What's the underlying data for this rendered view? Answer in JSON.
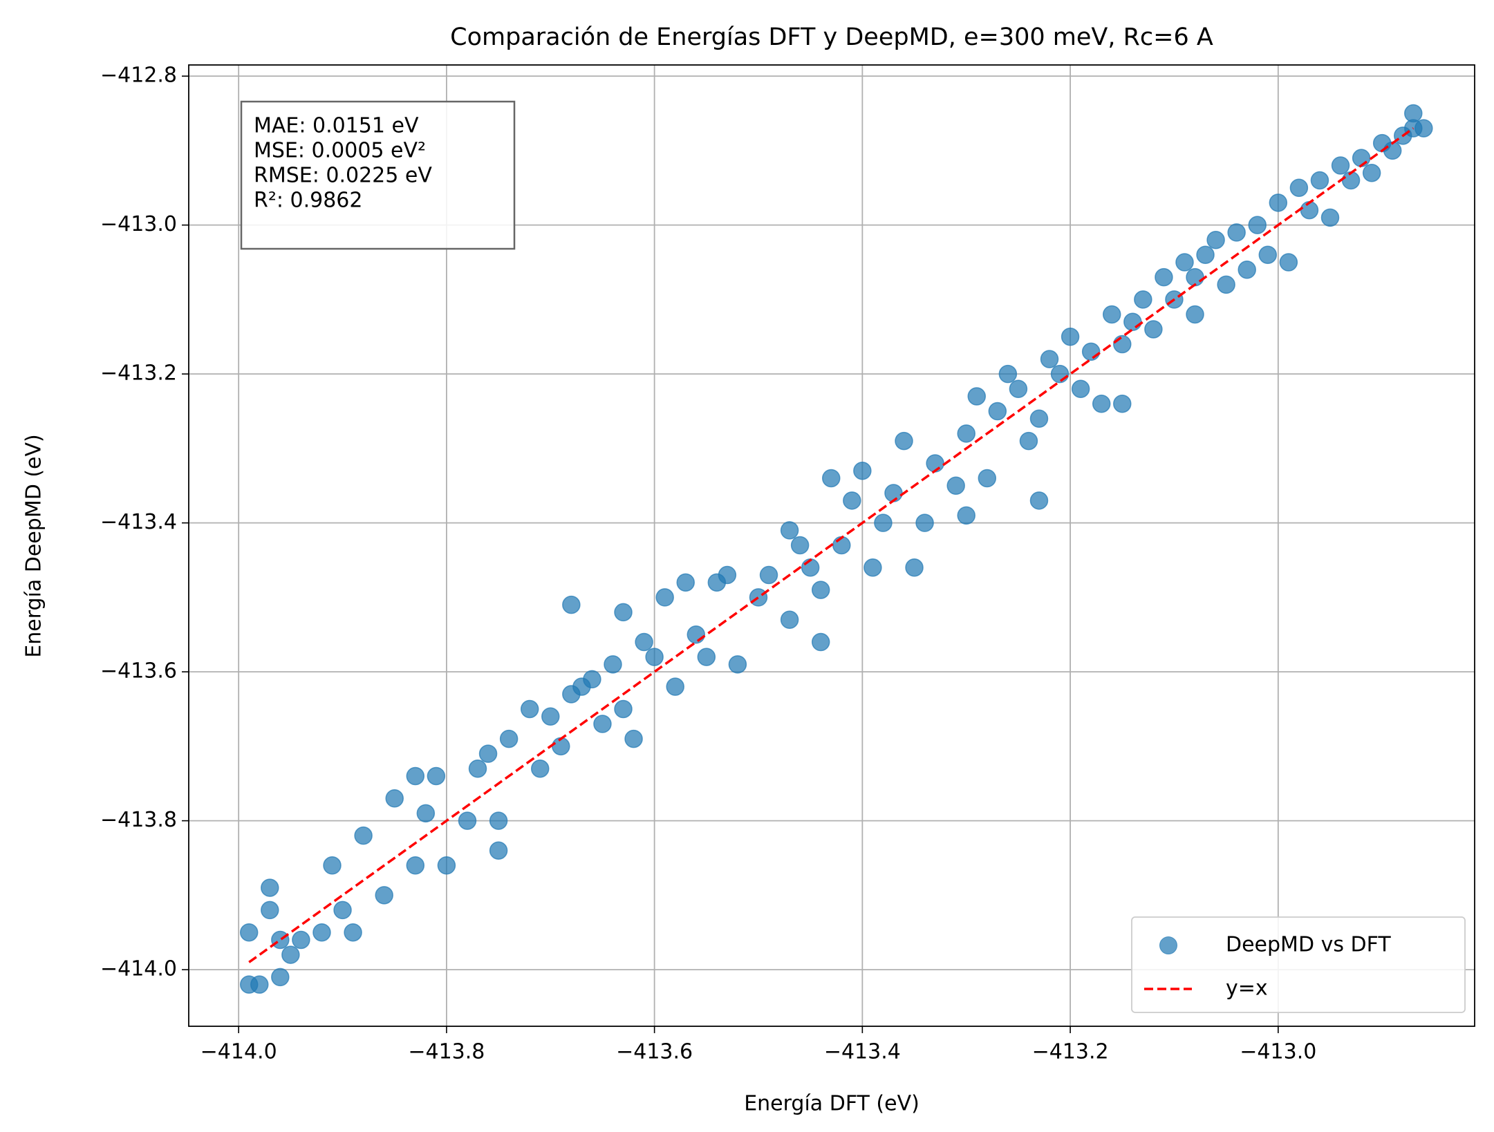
{
  "chart_data": {
    "type": "scatter",
    "title": "Comparación de Energías DFT y DeepMD, e=300 meV, Rc=6 A",
    "x_label": "Energía DFT (eV)",
    "y_label": "Energía DeepMD (eV)",
    "xlim": [
      -414.048,
      -412.811
    ],
    "ylim": [
      -414.076,
      -412.785
    ],
    "xticks": [
      {
        "value": -414.0,
        "label": "−414.0"
      },
      {
        "value": -413.8,
        "label": "−413.8"
      },
      {
        "value": -413.6,
        "label": "−413.6"
      },
      {
        "value": -413.4,
        "label": "−413.4"
      },
      {
        "value": -413.2,
        "label": "−413.2"
      },
      {
        "value": -413.0,
        "label": "−413.0"
      }
    ],
    "yticks": [
      {
        "value": -414.0,
        "label": "−414.0"
      },
      {
        "value": -413.8,
        "label": "−413.8"
      },
      {
        "value": -413.6,
        "label": "−413.6"
      },
      {
        "value": -413.4,
        "label": "−413.4"
      },
      {
        "value": -413.2,
        "label": "−413.2"
      },
      {
        "value": -413.0,
        "label": "−413.0"
      },
      {
        "value": -412.8,
        "label": "−412.8"
      }
    ],
    "grid": true,
    "legend": "lower right",
    "stats": [
      "MAE: 0.0151 eV",
      "MSE: 0.0005 eV²",
      "RMSE: 0.0225 eV",
      "R²: 0.9862"
    ],
    "series": [
      {
        "name": "DeepMD vs DFT",
        "color": "#1f77b4",
        "x": [
          -413.99,
          -413.99,
          -413.98,
          -413.97,
          -413.96,
          -413.96,
          -413.95,
          -413.97,
          -413.94,
          -413.92,
          -413.91,
          -413.9,
          -413.89,
          -413.88,
          -413.86,
          -413.85,
          -413.83,
          -413.83,
          -413.82,
          -413.81,
          -413.8,
          -413.78,
          -413.77,
          -413.76,
          -413.75,
          -413.75,
          -413.74,
          -413.72,
          -413.71,
          -413.7,
          -413.69,
          -413.68,
          -413.68,
          -413.67,
          -413.66,
          -413.65,
          -413.64,
          -413.63,
          -413.63,
          -413.62,
          -413.61,
          -413.6,
          -413.59,
          -413.58,
          -413.57,
          -413.56,
          -413.55,
          -413.54,
          -413.53,
          -413.52,
          -413.5,
          -413.49,
          -413.47,
          -413.47,
          -413.46,
          -413.45,
          -413.44,
          -413.44,
          -413.43,
          -413.42,
          -413.41,
          -413.4,
          -413.39,
          -413.38,
          -413.37,
          -413.36,
          -413.35,
          -413.34,
          -413.33,
          -413.31,
          -413.3,
          -413.3,
          -413.29,
          -413.28,
          -413.27,
          -413.26,
          -413.25,
          -413.24,
          -413.23,
          -413.23,
          -413.22,
          -413.21,
          -413.2,
          -413.19,
          -413.18,
          -413.17,
          -413.16,
          -413.15,
          -413.15,
          -413.14,
          -413.13,
          -413.12,
          -413.11,
          -413.1,
          -413.09,
          -413.08,
          -413.08,
          -413.07,
          -413.06,
          -413.05,
          -413.04,
          -413.03,
          -413.02,
          -413.01,
          -413.0,
          -412.99,
          -412.98,
          -412.97,
          -412.96,
          -412.95,
          -412.94,
          -412.93,
          -412.92,
          -412.91,
          -412.9,
          -412.89,
          -412.88,
          -412.87,
          -412.87,
          -412.86
        ],
        "values": [
          -414.02,
          -413.95,
          -414.02,
          -413.89,
          -414.01,
          -413.96,
          -413.98,
          -413.92,
          -413.96,
          -413.95,
          -413.86,
          -413.92,
          -413.95,
          -413.82,
          -413.9,
          -413.77,
          -413.74,
          -413.86,
          -413.79,
          -413.74,
          -413.86,
          -413.8,
          -413.73,
          -413.71,
          -413.84,
          -413.8,
          -413.69,
          -413.65,
          -413.73,
          -413.66,
          -413.7,
          -413.63,
          -413.51,
          -413.62,
          -413.61,
          -413.67,
          -413.59,
          -413.52,
          -413.65,
          -413.69,
          -413.56,
          -413.58,
          -413.5,
          -413.62,
          -413.48,
          -413.55,
          -413.58,
          -413.48,
          -413.47,
          -413.59,
          -413.5,
          -413.47,
          -413.41,
          -413.53,
          -413.43,
          -413.46,
          -413.49,
          -413.56,
          -413.34,
          -413.43,
          -413.37,
          -413.33,
          -413.46,
          -413.4,
          -413.36,
          -413.29,
          -413.46,
          -413.4,
          -413.32,
          -413.35,
          -413.39,
          -413.28,
          -413.23,
          -413.34,
          -413.25,
          -413.2,
          -413.22,
          -413.29,
          -413.37,
          -413.26,
          -413.18,
          -413.2,
          -413.15,
          -413.22,
          -413.17,
          -413.24,
          -413.12,
          -413.24,
          -413.16,
          -413.13,
          -413.1,
          -413.14,
          -413.07,
          -413.1,
          -413.05,
          -413.07,
          -413.12,
          -413.04,
          -413.02,
          -413.08,
          -413.01,
          -413.06,
          -413.0,
          -413.04,
          -412.97,
          -413.05,
          -412.95,
          -412.98,
          -412.94,
          -412.99,
          -412.92,
          -412.94,
          -412.91,
          -412.93,
          -412.89,
          -412.9,
          -412.88,
          -412.85,
          -412.87,
          -412.87
        ]
      }
    ],
    "reference_line": {
      "name": "y=x",
      "color": "#ff0000",
      "x": [
        -413.99,
        -412.87
      ],
      "values": [
        -413.99,
        -412.87
      ]
    }
  }
}
